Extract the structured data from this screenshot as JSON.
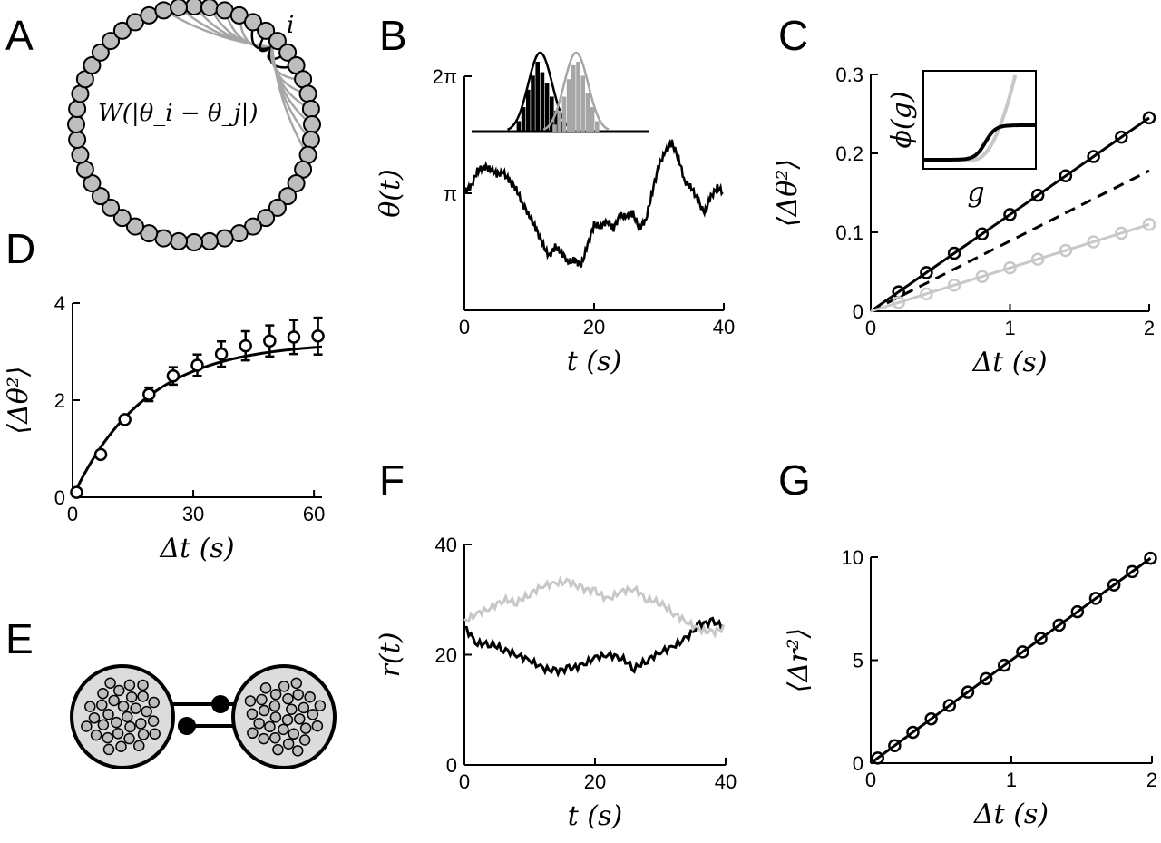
{
  "colors": {
    "black": "#000000",
    "gray": "#a6a6a6",
    "light": "#c8c8c8",
    "node": "#bdbdbd"
  },
  "panels": {
    "A": {
      "letter": "A",
      "node_label": "i",
      "kernel_label": "W(|θ_i − θ_j|)",
      "node_count": 48
    },
    "B": {
      "letter": "B"
    },
    "C": {
      "letter": "C"
    },
    "D": {
      "letter": "D"
    },
    "E": {
      "letter": "E"
    },
    "F": {
      "letter": "F"
    },
    "G": {
      "letter": "G"
    }
  },
  "chart_data": [
    {
      "panel": "B",
      "type": "line",
      "xlabel": "t (s)",
      "ylabel": "θ(t)",
      "xlim": [
        0,
        40
      ],
      "ylim": [
        0,
        6.283
      ],
      "xticks": [
        "0",
        "20",
        "40"
      ],
      "yticks": [
        "π",
        "2π"
      ],
      "series": [
        {
          "color": "black",
          "x": [
            0,
            1,
            2,
            3,
            4,
            5,
            6,
            7,
            8,
            9,
            10,
            11,
            12,
            13,
            14,
            15,
            16,
            17,
            18,
            19,
            20,
            21,
            22,
            23,
            24,
            25,
            26,
            27,
            28,
            29,
            30,
            31,
            32,
            33,
            34,
            35,
            36,
            37,
            38,
            39,
            40
          ],
          "y": [
            3.2,
            3.3,
            3.75,
            3.85,
            3.8,
            3.65,
            3.7,
            3.45,
            3.25,
            2.85,
            2.55,
            2.2,
            1.8,
            1.45,
            1.7,
            1.55,
            1.3,
            1.35,
            1.2,
            1.75,
            2.3,
            2.25,
            2.4,
            2.2,
            2.55,
            2.5,
            2.6,
            2.2,
            2.45,
            3.2,
            3.9,
            4.25,
            4.5,
            4.1,
            3.45,
            3.3,
            2.95,
            2.6,
            3.05,
            3.3,
            3.15
          ]
        }
      ],
      "inset": {
        "histograms": [
          {
            "color": "black",
            "center": 0.42,
            "bars": [
              0.15,
              0.35,
              0.6,
              0.8,
              1.0,
              0.85,
              0.7,
              0.5,
              0.3,
              0.15
            ]
          },
          {
            "color": "gray",
            "center": 0.64,
            "bars": [
              0.1,
              0.3,
              0.5,
              0.75,
              0.95,
              1.0,
              0.8,
              0.55,
              0.35,
              0.15
            ]
          }
        ]
      }
    },
    {
      "panel": "C",
      "type": "line",
      "xlabel": "Δt (s)",
      "ylabel": "⟨Δθ²⟩",
      "xlim": [
        0,
        2
      ],
      "ylim": [
        0,
        0.3
      ],
      "xticks": [
        "0",
        "1",
        "2"
      ],
      "yticks": [
        "0",
        "0.1",
        "0.2",
        "0.3"
      ],
      "series": [
        {
          "color": "black",
          "style": "solid-markers",
          "x": [
            0.2,
            0.4,
            0.6,
            0.8,
            1.0,
            1.2,
            1.4,
            1.6,
            1.8,
            2.0
          ],
          "y": [
            0.0245,
            0.049,
            0.0735,
            0.098,
            0.1225,
            0.147,
            0.1715,
            0.196,
            0.2205,
            0.245
          ]
        },
        {
          "color": "black",
          "style": "dashed",
          "x": [
            0,
            2
          ],
          "y": [
            0,
            0.178
          ]
        },
        {
          "color": "light",
          "style": "solid-markers",
          "x": [
            0.2,
            0.4,
            0.6,
            0.8,
            1.0,
            1.2,
            1.4,
            1.6,
            1.8,
            2.0
          ],
          "y": [
            0.011,
            0.022,
            0.033,
            0.044,
            0.055,
            0.066,
            0.077,
            0.088,
            0.099,
            0.11
          ]
        }
      ],
      "inset": {
        "xlabel": "g",
        "ylabel": "ϕ(g)"
      }
    },
    {
      "panel": "D",
      "type": "line",
      "xlabel": "Δt (s)",
      "ylabel": "⟨Δθ²⟩",
      "xlim": [
        0,
        62
      ],
      "ylim": [
        0,
        4
      ],
      "xticks": [
        "0",
        "30",
        "60"
      ],
      "yticks": [
        "0",
        "2",
        "4"
      ],
      "fit": {
        "asymptote": 3.2,
        "tau": 18
      },
      "points": {
        "x": [
          1,
          7,
          13,
          19,
          25,
          31,
          37,
          43,
          49,
          55,
          61
        ],
        "y": [
          0.1,
          0.88,
          1.6,
          2.12,
          2.5,
          2.72,
          2.95,
          3.12,
          3.22,
          3.3,
          3.32
        ],
        "err": [
          0.04,
          0.06,
          0.08,
          0.14,
          0.18,
          0.22,
          0.26,
          0.3,
          0.32,
          0.35,
          0.38
        ]
      }
    },
    {
      "panel": "F",
      "type": "line",
      "xlabel": "t (s)",
      "ylabel": "r(t)",
      "xlim": [
        0,
        40
      ],
      "ylim": [
        0,
        40
      ],
      "xticks": [
        "0",
        "20",
        "40"
      ],
      "yticks": [
        "0",
        "20",
        "40"
      ],
      "series": [
        {
          "color": "black",
          "x": [
            0,
            2,
            4,
            6,
            8,
            10,
            12,
            14,
            16,
            18,
            20,
            22,
            24,
            26,
            28,
            30,
            32,
            34,
            36,
            38,
            40
          ],
          "y": [
            25,
            22,
            22,
            21,
            20,
            19,
            17.5,
            17,
            17.5,
            18,
            19.5,
            20,
            19.5,
            17.5,
            19,
            20.5,
            21.5,
            23,
            25.5,
            26,
            25
          ]
        },
        {
          "color": "light",
          "x": [
            0,
            2,
            4,
            6,
            8,
            10,
            12,
            14,
            16,
            18,
            20,
            22,
            24,
            26,
            28,
            30,
            32,
            34,
            36,
            38,
            40
          ],
          "y": [
            26,
            27.5,
            28.5,
            30,
            29.5,
            31,
            32.5,
            33,
            33.2,
            32,
            31.5,
            30,
            31.5,
            32,
            30,
            29.5,
            27.5,
            26,
            24.5,
            24,
            25
          ]
        }
      ]
    },
    {
      "panel": "G",
      "type": "line",
      "xlabel": "Δt (s)",
      "ylabel": "⟨Δr²⟩",
      "xlim": [
        0,
        2
      ],
      "ylim": [
        0,
        10
      ],
      "xticks": [
        "0",
        "1",
        "2"
      ],
      "yticks": [
        "0",
        "5",
        "10"
      ],
      "series": [
        {
          "color": "black",
          "style": "solid-markers",
          "x": [
            0.05,
            0.17,
            0.3,
            0.43,
            0.56,
            0.69,
            0.82,
            0.95,
            1.08,
            1.21,
            1.34,
            1.47,
            1.6,
            1.73,
            1.86,
            1.99
          ],
          "y": [
            0.25,
            0.85,
            1.5,
            2.15,
            2.8,
            3.45,
            4.1,
            4.75,
            5.4,
            6.05,
            6.7,
            7.35,
            8.0,
            8.65,
            9.3,
            9.95
          ]
        }
      ]
    }
  ]
}
